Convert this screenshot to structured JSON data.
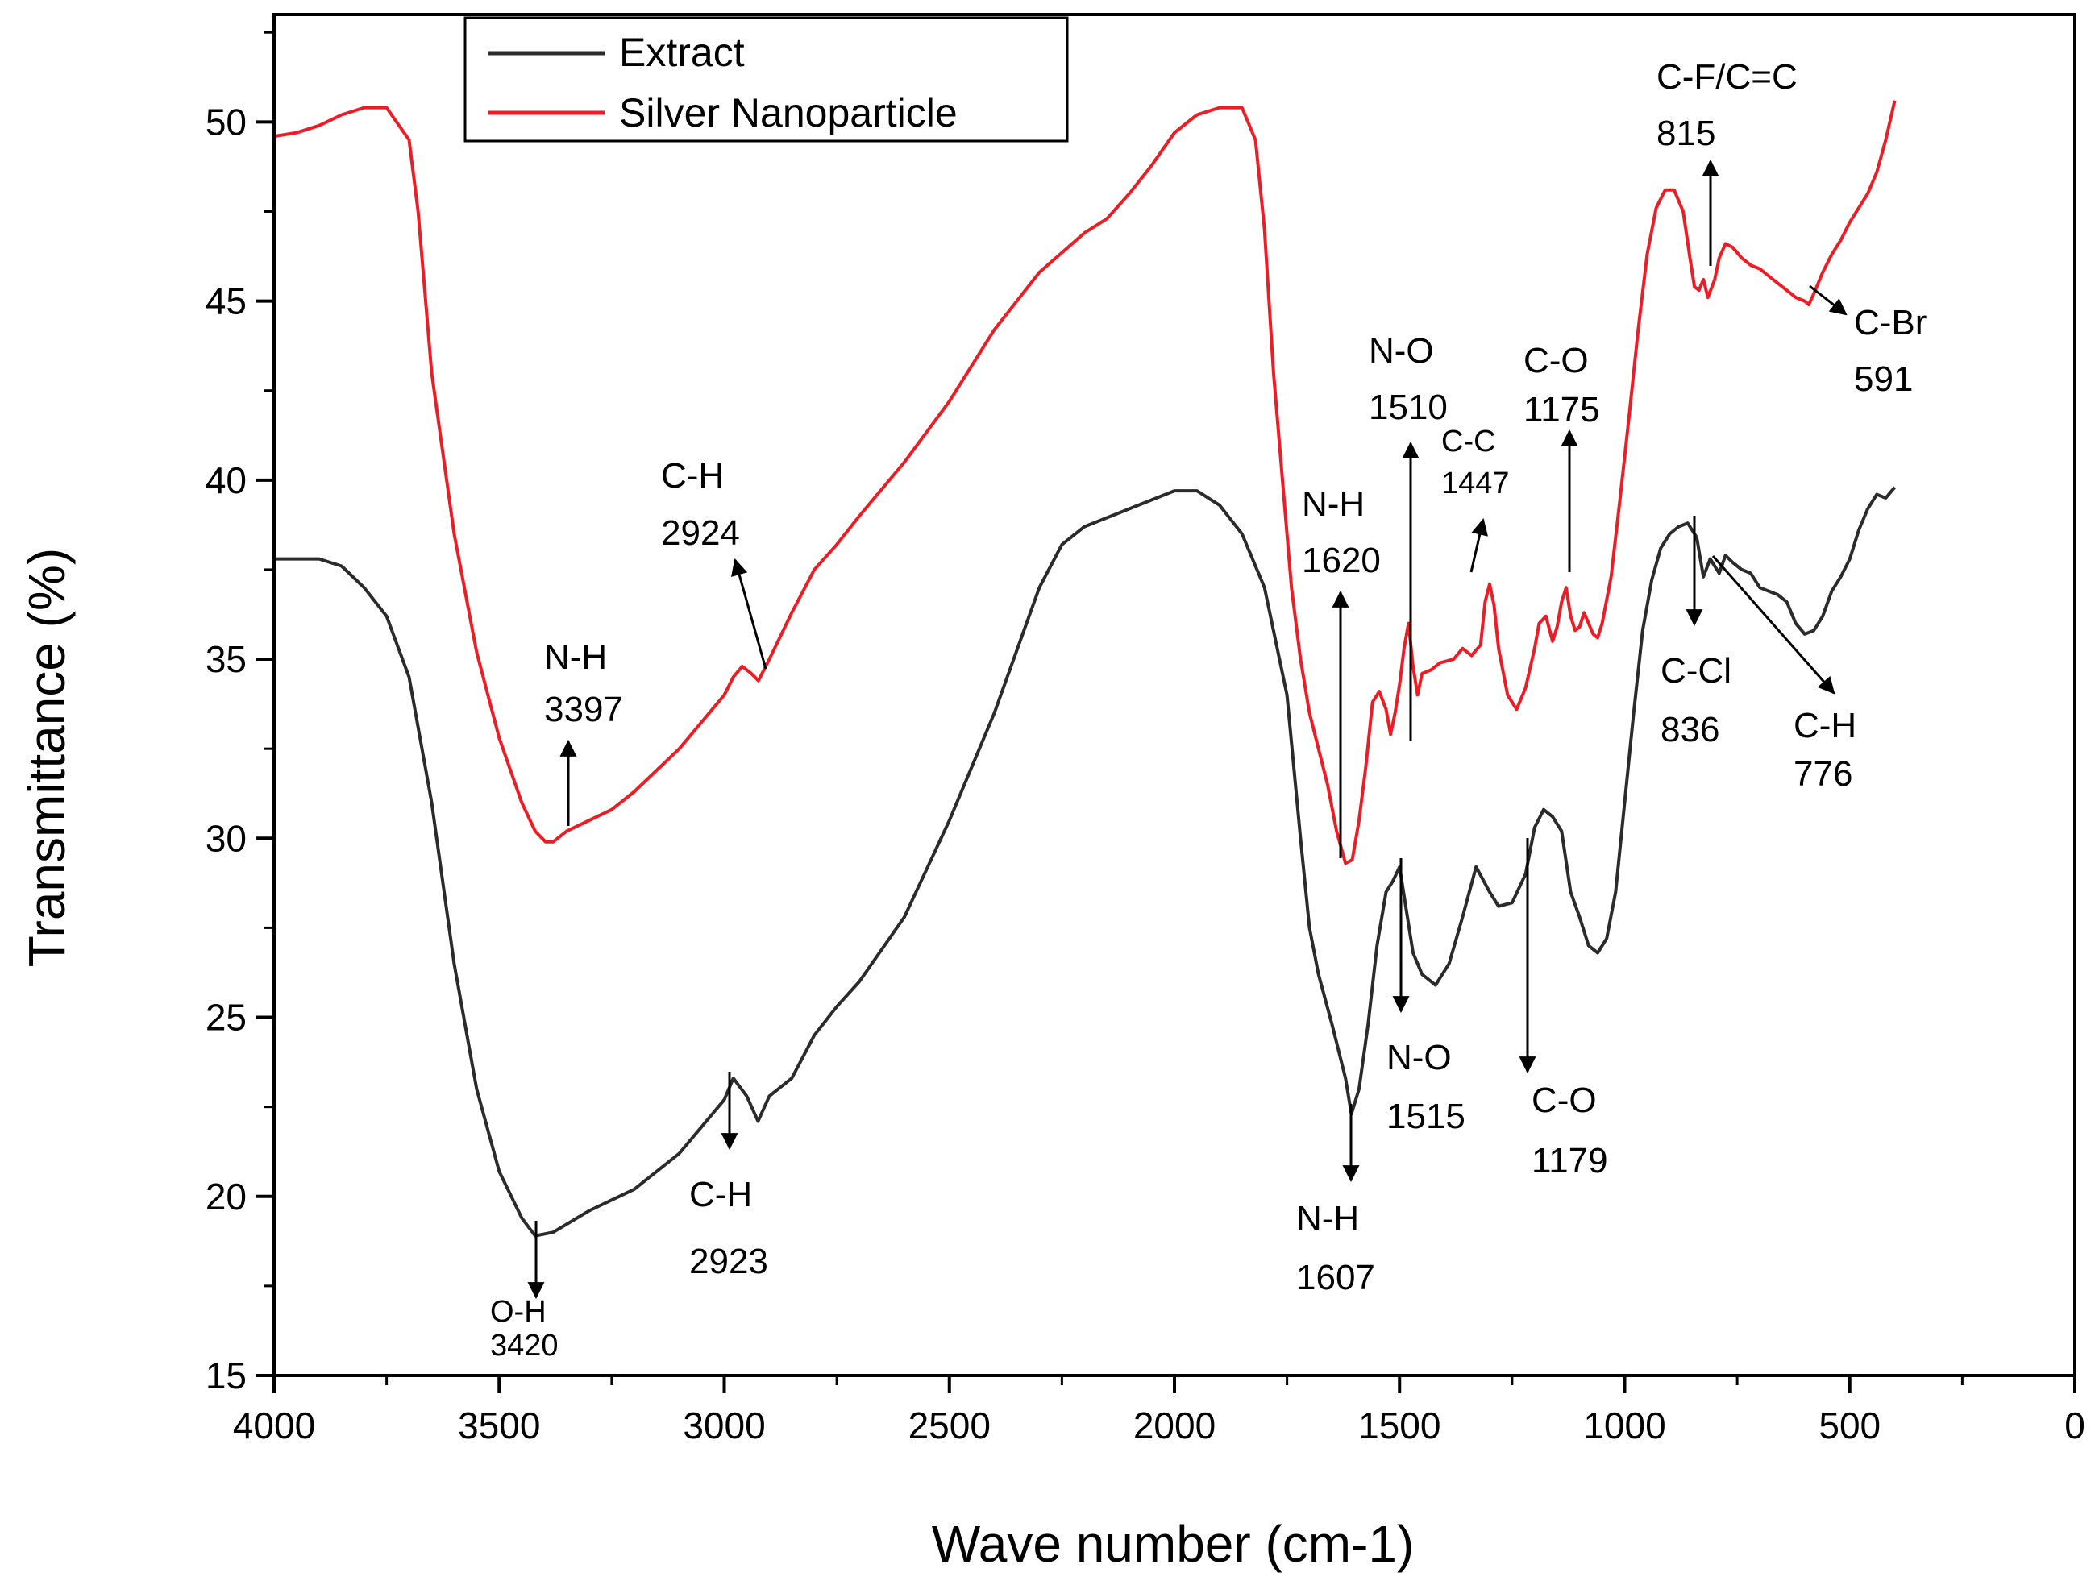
{
  "chart_data": {
    "type": "line",
    "title": "",
    "xlabel": "Wave number (cm-1)",
    "ylabel": "Transmittance (%)",
    "xlim": [
      4000,
      0
    ],
    "ylim": [
      15,
      53
    ],
    "x_ticks": [
      4000,
      3500,
      3000,
      2500,
      2000,
      1500,
      1000,
      500,
      0
    ],
    "y_ticks": [
      15,
      20,
      25,
      30,
      35,
      40,
      45,
      50
    ],
    "legend": {
      "position": "top-left",
      "entries": [
        {
          "name": "Extract",
          "color": "#2b2b2b"
        },
        {
          "name": "Silver Nanoparticle",
          "color": "#ee1c24"
        }
      ]
    },
    "series": [
      {
        "name": "Extract",
        "color": "#2b2b2b",
        "points": [
          [
            4000,
            37.8
          ],
          [
            3900,
            37.8
          ],
          [
            3850,
            37.6
          ],
          [
            3800,
            37.0
          ],
          [
            3750,
            36.2
          ],
          [
            3700,
            34.5
          ],
          [
            3650,
            31.0
          ],
          [
            3600,
            26.5
          ],
          [
            3550,
            23.0
          ],
          [
            3500,
            20.7
          ],
          [
            3450,
            19.4
          ],
          [
            3420,
            18.9
          ],
          [
            3380,
            19.0
          ],
          [
            3300,
            19.6
          ],
          [
            3200,
            20.2
          ],
          [
            3100,
            21.2
          ],
          [
            3000,
            22.7
          ],
          [
            2980,
            23.3
          ],
          [
            2950,
            22.8
          ],
          [
            2925,
            22.1
          ],
          [
            2900,
            22.8
          ],
          [
            2850,
            23.3
          ],
          [
            2800,
            24.5
          ],
          [
            2750,
            25.3
          ],
          [
            2700,
            26.0
          ],
          [
            2600,
            27.8
          ],
          [
            2500,
            30.5
          ],
          [
            2400,
            33.5
          ],
          [
            2300,
            37.0
          ],
          [
            2250,
            38.2
          ],
          [
            2200,
            38.7
          ],
          [
            2100,
            39.2
          ],
          [
            2000,
            39.7
          ],
          [
            1950,
            39.7
          ],
          [
            1900,
            39.3
          ],
          [
            1850,
            38.5
          ],
          [
            1800,
            37.0
          ],
          [
            1750,
            34.0
          ],
          [
            1720,
            30.0
          ],
          [
            1700,
            27.5
          ],
          [
            1680,
            26.2
          ],
          [
            1650,
            24.8
          ],
          [
            1620,
            23.3
          ],
          [
            1607,
            22.3
          ],
          [
            1590,
            23.0
          ],
          [
            1570,
            24.8
          ],
          [
            1550,
            27.0
          ],
          [
            1530,
            28.5
          ],
          [
            1515,
            28.8
          ],
          [
            1500,
            29.2
          ],
          [
            1485,
            28.0
          ],
          [
            1470,
            26.8
          ],
          [
            1450,
            26.2
          ],
          [
            1420,
            25.9
          ],
          [
            1390,
            26.5
          ],
          [
            1360,
            27.8
          ],
          [
            1330,
            29.2
          ],
          [
            1300,
            28.5
          ],
          [
            1280,
            28.1
          ],
          [
            1250,
            28.2
          ],
          [
            1220,
            29.0
          ],
          [
            1200,
            30.3
          ],
          [
            1180,
            30.8
          ],
          [
            1160,
            30.6
          ],
          [
            1140,
            30.2
          ],
          [
            1120,
            28.5
          ],
          [
            1100,
            27.8
          ],
          [
            1080,
            27.0
          ],
          [
            1060,
            26.8
          ],
          [
            1040,
            27.2
          ],
          [
            1020,
            28.5
          ],
          [
            1000,
            31.0
          ],
          [
            980,
            33.5
          ],
          [
            960,
            35.8
          ],
          [
            940,
            37.2
          ],
          [
            920,
            38.1
          ],
          [
            900,
            38.5
          ],
          [
            880,
            38.7
          ],
          [
            860,
            38.8
          ],
          [
            840,
            38.4
          ],
          [
            825,
            37.3
          ],
          [
            810,
            37.8
          ],
          [
            800,
            37.6
          ],
          [
            790,
            37.4
          ],
          [
            776,
            37.9
          ],
          [
            760,
            37.7
          ],
          [
            740,
            37.5
          ],
          [
            720,
            37.4
          ],
          [
            700,
            37.0
          ],
          [
            680,
            36.9
          ],
          [
            660,
            36.8
          ],
          [
            640,
            36.6
          ],
          [
            620,
            36.0
          ],
          [
            600,
            35.7
          ],
          [
            580,
            35.8
          ],
          [
            560,
            36.2
          ],
          [
            540,
            36.9
          ],
          [
            520,
            37.3
          ],
          [
            500,
            37.8
          ],
          [
            480,
            38.6
          ],
          [
            460,
            39.2
          ],
          [
            440,
            39.6
          ],
          [
            420,
            39.5
          ],
          [
            400,
            39.8
          ]
        ]
      },
      {
        "name": "Silver Nanoparticle",
        "color": "#ee1c24",
        "points": [
          [
            4000,
            49.6
          ],
          [
            3950,
            49.7
          ],
          [
            3900,
            49.9
          ],
          [
            3850,
            50.2
          ],
          [
            3800,
            50.4
          ],
          [
            3750,
            50.4
          ],
          [
            3700,
            49.5
          ],
          [
            3680,
            47.5
          ],
          [
            3650,
            43.0
          ],
          [
            3600,
            38.5
          ],
          [
            3550,
            35.2
          ],
          [
            3500,
            32.8
          ],
          [
            3450,
            31.0
          ],
          [
            3420,
            30.2
          ],
          [
            3397,
            29.9
          ],
          [
            3380,
            29.9
          ],
          [
            3350,
            30.2
          ],
          [
            3300,
            30.5
          ],
          [
            3250,
            30.8
          ],
          [
            3200,
            31.3
          ],
          [
            3100,
            32.5
          ],
          [
            3000,
            34.0
          ],
          [
            2980,
            34.5
          ],
          [
            2960,
            34.8
          ],
          [
            2940,
            34.6
          ],
          [
            2924,
            34.4
          ],
          [
            2900,
            35.0
          ],
          [
            2850,
            36.3
          ],
          [
            2800,
            37.5
          ],
          [
            2750,
            38.2
          ],
          [
            2700,
            39.0
          ],
          [
            2600,
            40.5
          ],
          [
            2500,
            42.2
          ],
          [
            2400,
            44.2
          ],
          [
            2300,
            45.8
          ],
          [
            2200,
            46.9
          ],
          [
            2150,
            47.3
          ],
          [
            2100,
            48.0
          ],
          [
            2050,
            48.8
          ],
          [
            2000,
            49.7
          ],
          [
            1950,
            50.2
          ],
          [
            1900,
            50.4
          ],
          [
            1850,
            50.4
          ],
          [
            1820,
            49.5
          ],
          [
            1800,
            47.0
          ],
          [
            1780,
            43.0
          ],
          [
            1760,
            40.0
          ],
          [
            1740,
            37.0
          ],
          [
            1720,
            35.0
          ],
          [
            1700,
            33.5
          ],
          [
            1680,
            32.5
          ],
          [
            1660,
            31.5
          ],
          [
            1640,
            30.2
          ],
          [
            1620,
            29.3
          ],
          [
            1605,
            29.4
          ],
          [
            1590,
            30.5
          ],
          [
            1575,
            32.0
          ],
          [
            1560,
            33.8
          ],
          [
            1545,
            34.1
          ],
          [
            1530,
            33.6
          ],
          [
            1520,
            32.9
          ],
          [
            1510,
            33.5
          ],
          [
            1500,
            34.3
          ],
          [
            1490,
            35.3
          ],
          [
            1480,
            36.0
          ],
          [
            1470,
            34.8
          ],
          [
            1460,
            34.0
          ],
          [
            1450,
            34.6
          ],
          [
            1430,
            34.7
          ],
          [
            1410,
            34.9
          ],
          [
            1380,
            35.0
          ],
          [
            1360,
            35.3
          ],
          [
            1340,
            35.1
          ],
          [
            1320,
            35.4
          ],
          [
            1310,
            36.6
          ],
          [
            1300,
            37.1
          ],
          [
            1290,
            36.5
          ],
          [
            1280,
            35.3
          ],
          [
            1260,
            34.0
          ],
          [
            1240,
            33.6
          ],
          [
            1220,
            34.2
          ],
          [
            1200,
            35.3
          ],
          [
            1190,
            36.0
          ],
          [
            1175,
            36.2
          ],
          [
            1160,
            35.5
          ],
          [
            1150,
            35.9
          ],
          [
            1140,
            36.6
          ],
          [
            1130,
            37.0
          ],
          [
            1120,
            36.2
          ],
          [
            1110,
            35.8
          ],
          [
            1100,
            35.9
          ],
          [
            1090,
            36.3
          ],
          [
            1080,
            36.0
          ],
          [
            1070,
            35.7
          ],
          [
            1060,
            35.6
          ],
          [
            1050,
            36.0
          ],
          [
            1030,
            37.3
          ],
          [
            1010,
            39.5
          ],
          [
            990,
            41.8
          ],
          [
            970,
            44.2
          ],
          [
            950,
            46.3
          ],
          [
            930,
            47.6
          ],
          [
            910,
            48.1
          ],
          [
            890,
            48.1
          ],
          [
            870,
            47.5
          ],
          [
            855,
            46.2
          ],
          [
            845,
            45.4
          ],
          [
            835,
            45.3
          ],
          [
            825,
            45.6
          ],
          [
            815,
            45.1
          ],
          [
            800,
            45.6
          ],
          [
            790,
            46.2
          ],
          [
            776,
            46.6
          ],
          [
            760,
            46.5
          ],
          [
            740,
            46.2
          ],
          [
            720,
            46.0
          ],
          [
            700,
            45.9
          ],
          [
            680,
            45.7
          ],
          [
            660,
            45.5
          ],
          [
            640,
            45.3
          ],
          [
            620,
            45.1
          ],
          [
            600,
            45.0
          ],
          [
            591,
            44.9
          ],
          [
            580,
            45.2
          ],
          [
            560,
            45.8
          ],
          [
            540,
            46.3
          ],
          [
            520,
            46.7
          ],
          [
            500,
            47.2
          ],
          [
            480,
            47.6
          ],
          [
            460,
            48.0
          ],
          [
            440,
            48.6
          ],
          [
            420,
            49.5
          ],
          [
            400,
            50.6
          ]
        ]
      }
    ],
    "annotations": [
      {
        "id": "ext-oh",
        "label": "O-H",
        "value": "3420",
        "series": "Extract",
        "x": 3420,
        "y": 18.9,
        "arrow": "down"
      },
      {
        "id": "ext-ch-2923",
        "label": "C-H",
        "value": "2923",
        "series": "Extract",
        "x": 2985,
        "y": 23.3,
        "arrow": "down"
      },
      {
        "id": "ext-nh-1607",
        "label": "N-H",
        "value": "1607",
        "series": "Extract",
        "x": 1607,
        "y": 22.3,
        "arrow": "down"
      },
      {
        "id": "ext-no-1515",
        "label": "N-O",
        "value": "1515",
        "series": "Extract",
        "x": 1500,
        "y": 29.2,
        "arrow": "down"
      },
      {
        "id": "ext-co-1179",
        "label": "C-O",
        "value": "1179",
        "series": "Extract",
        "x": 1190,
        "y": 30.8,
        "arrow": "down"
      },
      {
        "id": "ext-ccl-836",
        "label": "C-Cl",
        "value": "836",
        "series": "Extract",
        "x": 838,
        "y": 38.6,
        "arrow": "down"
      },
      {
        "id": "ext-ch-776",
        "label": "C-H",
        "value": "776",
        "series": "Extract",
        "x": 776,
        "y": 37.9,
        "arrow": "diagonal"
      },
      {
        "id": "ag-nh-3397",
        "label": "N-H",
        "value": "3397",
        "series": "Silver Nanoparticle",
        "x": 3355,
        "y": 30.2,
        "arrow": "up"
      },
      {
        "id": "ag-ch-2924",
        "label": "C-H",
        "value": "2924",
        "series": "Silver Nanoparticle",
        "x": 2924,
        "y": 34.4,
        "arrow": "up"
      },
      {
        "id": "ag-nh-1620",
        "label": "N-H",
        "value": "1620",
        "series": "Silver Nanoparticle",
        "x": 1620,
        "y": 29.3,
        "arrow": "up"
      },
      {
        "id": "ag-no-1510",
        "label": "N-O",
        "value": "1510",
        "series": "Silver Nanoparticle",
        "x": 1480,
        "y": 36.0,
        "arrow": "up"
      },
      {
        "id": "ag-cc-1447",
        "label": "C-C",
        "value": "1447",
        "series": "Silver Nanoparticle",
        "x": 1310,
        "y": 36.6,
        "arrow": "up"
      },
      {
        "id": "ag-co-1175",
        "label": "C-O",
        "value": "1175",
        "series": "Silver Nanoparticle",
        "x": 1130,
        "y": 37.0,
        "arrow": "up"
      },
      {
        "id": "ag-cf-815",
        "label": "C-F/C=C",
        "value": "815",
        "series": "Silver Nanoparticle",
        "x": 815,
        "y": 45.1,
        "arrow": "up"
      },
      {
        "id": "ag-cbr-591",
        "label": "C-Br",
        "value": "591",
        "series": "Silver Nanoparticle",
        "x": 591,
        "y": 44.9,
        "arrow": "diagonal"
      }
    ]
  }
}
